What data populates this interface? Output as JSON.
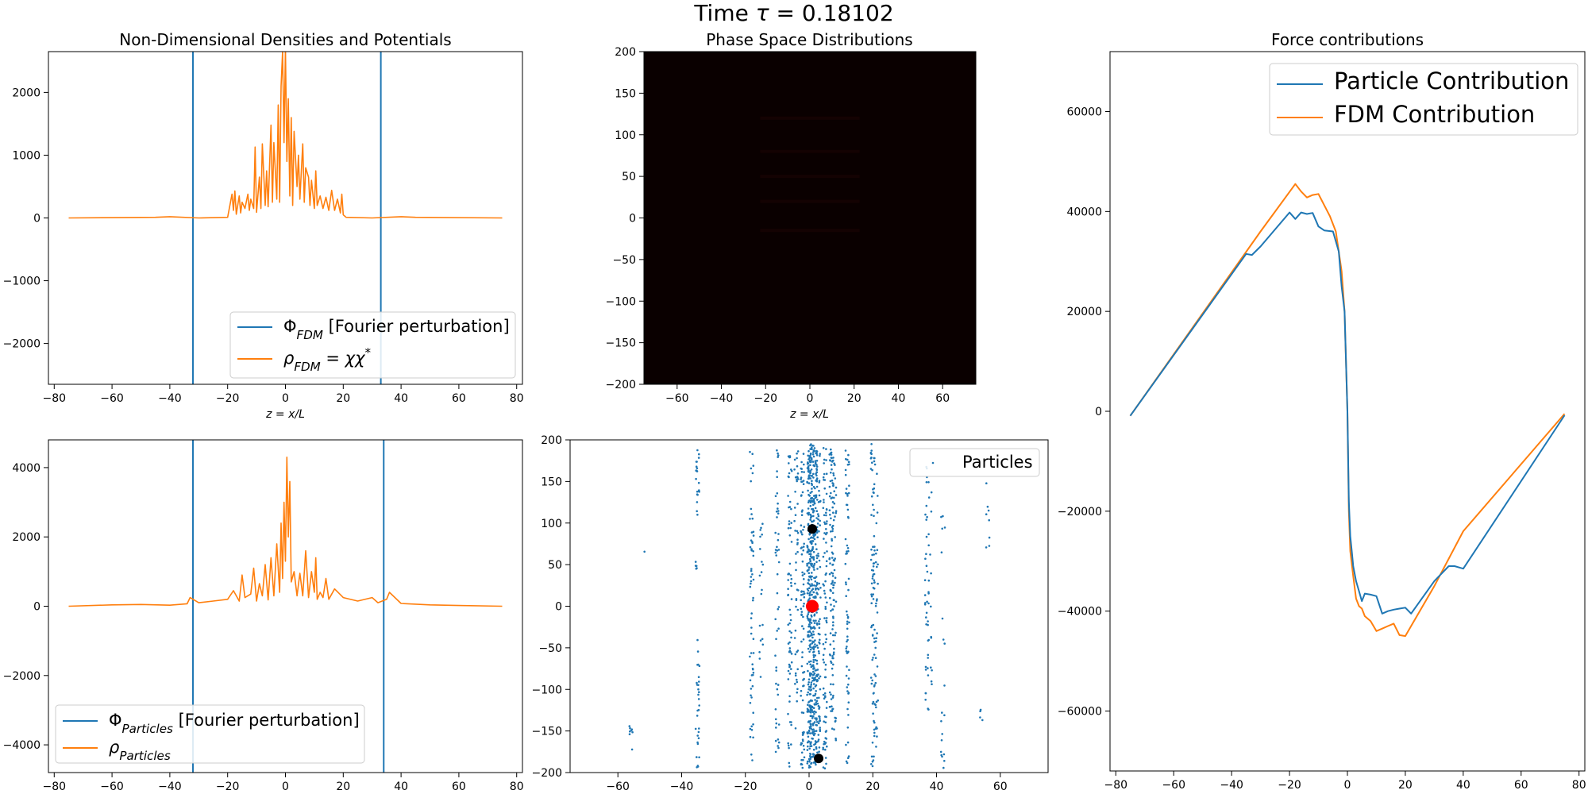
{
  "figure": {
    "title": "Time τ = 0.18102"
  },
  "colors": {
    "blue": "#1f77b4",
    "orange": "#ff7f0e",
    "phase_bg": "#0a0000",
    "marker_black": "#000000",
    "marker_red": "#ff0000"
  },
  "chart_data": [
    {
      "id": "densities_fdm",
      "type": "line",
      "title": "Non-Dimensional Densities and Potentials",
      "xlabel": "z = x/L",
      "xlim": [
        -82,
        82
      ],
      "ylim": [
        -2650,
        2650
      ],
      "xticks": [
        -80,
        -60,
        -40,
        -20,
        0,
        20,
        40,
        60,
        80
      ],
      "yticks": [
        -2000,
        -1000,
        0,
        1000,
        2000
      ],
      "vlines": [
        -32,
        33
      ],
      "series": [
        {
          "name": "Φ_FDM [Fourier perturbation]",
          "color": "#1f77b4",
          "x": [
            -32,
            33
          ],
          "y": [
            0,
            0
          ]
        },
        {
          "name": "ρ_FDM = χχ*",
          "color": "#ff7f0e",
          "x": [
            -75,
            -45,
            -40,
            -30,
            -20,
            -18.5,
            -18,
            -17.5,
            -17,
            -16,
            -15.5,
            -15,
            -14,
            -13,
            -12.5,
            -12,
            -11,
            -10.5,
            -10,
            -9,
            -8.5,
            -8,
            -7,
            -6.5,
            -6,
            -5,
            -4.5,
            -4,
            -3,
            -2.5,
            -2,
            -1.5,
            -1,
            -0.5,
            0,
            0.5,
            1,
            1.5,
            2,
            2.5,
            3,
            4,
            4.5,
            5,
            6,
            6.5,
            7,
            8,
            8.5,
            9,
            10,
            10.5,
            11,
            12,
            13,
            14,
            15,
            16,
            17,
            18,
            19,
            19.5,
            20,
            21,
            30,
            40,
            45,
            75
          ],
          "y": [
            0,
            10,
            20,
            0,
            10,
            380,
            120,
            430,
            60,
            350,
            80,
            250,
            150,
            380,
            120,
            300,
            150,
            1130,
            90,
            650,
            150,
            1180,
            200,
            750,
            180,
            1480,
            250,
            1200,
            300,
            1800,
            250,
            2100,
            2650,
            1200,
            2700,
            900,
            1900,
            350,
            1600,
            200,
            1380,
            500,
            1000,
            300,
            1180,
            250,
            800,
            650,
            200,
            600,
            150,
            750,
            200,
            350,
            150,
            330,
            120,
            440,
            120,
            300,
            80,
            380,
            50,
            10,
            0,
            20,
            10,
            0
          ]
        }
      ],
      "legend": {
        "position": "lower-right"
      }
    },
    {
      "id": "phase_fdm",
      "type": "heatmap",
      "title": "Phase Space Distributions",
      "xlabel": "z = x/L",
      "xlim": [
        -75,
        75
      ],
      "ylim": [
        -200,
        200
      ],
      "xticks": [
        -60,
        -40,
        -20,
        0,
        20,
        40,
        60
      ],
      "yticks": [
        -200,
        -150,
        -100,
        -50,
        0,
        50,
        100,
        150,
        200
      ],
      "colormap": "dark-red (afmhot-like), near-black everywhere"
    },
    {
      "id": "forces",
      "type": "line",
      "title": "Force contributions",
      "xlim": [
        -82,
        82
      ],
      "ylim": [
        -72000,
        72000
      ],
      "xticks": [
        -80,
        -60,
        -40,
        -20,
        0,
        20,
        40,
        60,
        80
      ],
      "yticks": [
        -60000,
        -40000,
        -20000,
        0,
        20000,
        40000,
        60000
      ],
      "series": [
        {
          "name": "Particle Contribution",
          "color": "#1f77b4",
          "x": [
            -75,
            -35,
            -33,
            -30,
            -20,
            -18,
            -16,
            -14,
            -12,
            -10,
            -8,
            -5,
            -3,
            -2,
            -1,
            -0.5,
            0,
            0.5,
            1,
            1.5,
            2,
            3,
            4,
            5,
            6,
            8,
            10,
            12,
            14,
            16,
            18,
            20,
            22,
            30,
            35,
            37,
            40,
            75
          ],
          "y": [
            -900,
            31500,
            31300,
            33000,
            39800,
            38500,
            39800,
            39500,
            39700,
            37000,
            36200,
            36000,
            32000,
            25000,
            20000,
            10000,
            0,
            -18000,
            -25000,
            -28000,
            -31000,
            -34000,
            -36000,
            -38000,
            -36500,
            -36700,
            -37000,
            -40500,
            -40000,
            -39700,
            -39500,
            -39300,
            -40500,
            -34000,
            -31000,
            -31000,
            -31500,
            -800
          ]
        },
        {
          "name": "FDM Contribution",
          "color": "#ff7f0e",
          "x": [
            -75,
            -30,
            -18,
            -16,
            -14,
            -12,
            -10,
            -6,
            -4,
            -3,
            -2,
            -1,
            -0.5,
            0,
            0.5,
            1,
            2,
            3,
            4,
            5,
            6,
            8,
            10,
            12,
            14,
            16,
            18,
            20,
            22,
            30,
            40,
            75
          ],
          "y": [
            -900,
            36000,
            45500,
            44000,
            42800,
            43300,
            43500,
            39000,
            36000,
            32000,
            28000,
            20000,
            10000,
            0,
            -20000,
            -28000,
            -33000,
            -37500,
            -39000,
            -39500,
            -41000,
            -42000,
            -44000,
            -43500,
            -43000,
            -42500,
            -44800,
            -45000,
            -43000,
            -35000,
            -24000,
            -500
          ]
        }
      ],
      "legend": {
        "position": "top-right"
      }
    },
    {
      "id": "densities_particles",
      "type": "line",
      "xlim": [
        -82,
        82
      ],
      "ylim": [
        -4800,
        4800
      ],
      "xticks": [
        -80,
        -60,
        -40,
        -20,
        0,
        20,
        40,
        60,
        80
      ],
      "yticks": [
        -4000,
        -2000,
        0,
        2000,
        4000
      ],
      "vlines": [
        -32,
        34
      ],
      "series": [
        {
          "name": "Φ_Particles [Fourier perturbation]",
          "color": "#1f77b4",
          "x": [
            -32,
            34
          ],
          "y": [
            0,
            0
          ]
        },
        {
          "name": "ρ_Particles",
          "color": "#ff7f0e",
          "x": [
            -75,
            -60,
            -50,
            -40,
            -34,
            -33,
            -30,
            -25,
            -20,
            -18,
            -16,
            -15,
            -14,
            -12,
            -11,
            -10,
            -9,
            -8,
            -7,
            -6,
            -5,
            -4,
            -3,
            -2,
            -1.5,
            -1,
            -0.5,
            0,
            0.5,
            1,
            1.5,
            2,
            3,
            4,
            5,
            6,
            7,
            8,
            9,
            10,
            10.5,
            11,
            12,
            13,
            14,
            15,
            17,
            20,
            25,
            30,
            32,
            35,
            36,
            40,
            50,
            60,
            75
          ],
          "y": [
            0,
            40,
            50,
            30,
            70,
            250,
            100,
            150,
            200,
            450,
            150,
            900,
            250,
            350,
            1100,
            150,
            650,
            300,
            1200,
            180,
            1400,
            300,
            1800,
            400,
            2400,
            800,
            3000,
            1300,
            4300,
            2000,
            3600,
            700,
            1000,
            300,
            950,
            300,
            1600,
            250,
            1000,
            400,
            1400,
            200,
            400,
            250,
            800,
            200,
            500,
            250,
            150,
            250,
            100,
            200,
            400,
            80,
            40,
            20,
            0
          ]
        }
      ],
      "legend": {
        "position": "lower-left"
      }
    },
    {
      "id": "phase_particles",
      "type": "scatter",
      "xlim": [
        -75,
        75
      ],
      "ylim": [
        -200,
        200
      ],
      "xticks": [
        -60,
        -40,
        -20,
        0,
        20,
        40,
        60
      ],
      "yticks": [
        -200,
        -150,
        -100,
        -50,
        0,
        50,
        100,
        150,
        200
      ],
      "series": [
        {
          "name": "Particles",
          "color": "#1f77b4",
          "columns": [
            {
              "x": -56,
              "ymin": -180,
              "ymax": -135,
              "n": 8
            },
            {
              "x": -52,
              "ymin": 65,
              "ymax": 68,
              "n": 1
            },
            {
              "x": -35,
              "ymin": 100,
              "ymax": 190,
              "n": 20
            },
            {
              "x": -35,
              "ymin": 40,
              "ymax": 60,
              "n": 5
            },
            {
              "x": -35,
              "ymin": -195,
              "ymax": -40,
              "n": 30
            },
            {
              "x": -18,
              "ymin": -195,
              "ymax": 195,
              "n": 60
            },
            {
              "x": -15,
              "ymin": -100,
              "ymax": 140,
              "n": 20
            },
            {
              "x": -10,
              "ymin": -180,
              "ymax": 190,
              "n": 50
            },
            {
              "x": -6,
              "ymin": -195,
              "ymax": 195,
              "n": 70
            },
            {
              "x": -4,
              "ymin": -150,
              "ymax": 190,
              "n": 50
            },
            {
              "x": -2,
              "ymin": -195,
              "ymax": 195,
              "n": 90
            },
            {
              "x": 0,
              "ymin": -195,
              "ymax": 195,
              "n": 200
            },
            {
              "x": 1,
              "ymin": -195,
              "ymax": 195,
              "n": 200
            },
            {
              "x": 2,
              "ymin": -195,
              "ymax": 195,
              "n": 160
            },
            {
              "x": 3,
              "ymin": -180,
              "ymax": 190,
              "n": 80
            },
            {
              "x": 5,
              "ymin": -195,
              "ymax": 195,
              "n": 90
            },
            {
              "x": 7,
              "ymin": -150,
              "ymax": 190,
              "n": 90
            },
            {
              "x": 8,
              "ymin": -170,
              "ymax": 180,
              "n": 50
            },
            {
              "x": 12,
              "ymin": -195,
              "ymax": 190,
              "n": 70
            },
            {
              "x": 20,
              "ymin": -195,
              "ymax": 195,
              "n": 80
            },
            {
              "x": 21,
              "ymin": -180,
              "ymax": 180,
              "n": 40
            },
            {
              "x": 37,
              "ymin": -180,
              "ymax": 175,
              "n": 40
            },
            {
              "x": 38,
              "ymin": -100,
              "ymax": 150,
              "n": 15
            },
            {
              "x": 42,
              "ymin": -195,
              "ymax": 140,
              "n": 20
            },
            {
              "x": 54,
              "ymin": -143,
              "ymax": -120,
              "n": 4
            },
            {
              "x": 56,
              "ymin": 55,
              "ymax": 150,
              "n": 8
            }
          ]
        },
        {
          "color": "#000000",
          "x": [
            1,
            3
          ],
          "y": [
            93,
            -183
          ]
        },
        {
          "color": "#ff0000",
          "x": [
            1
          ],
          "y": [
            0
          ]
        }
      ],
      "legend": {
        "position": "top-right"
      }
    }
  ]
}
